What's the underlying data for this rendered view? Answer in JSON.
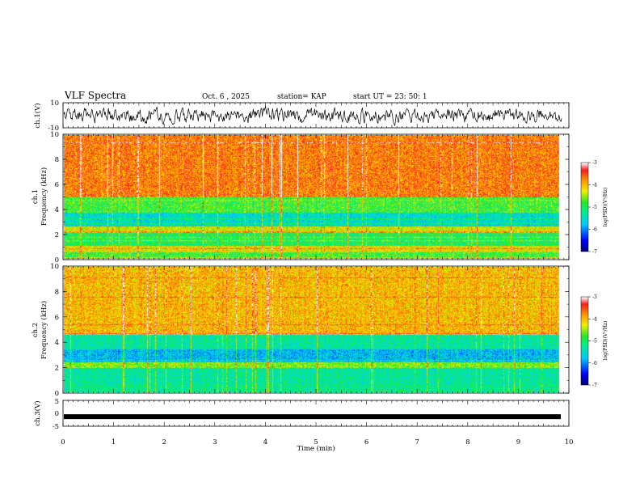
{
  "header": {
    "title": "VLF Spectra",
    "date": "Oct. 6  , 2025",
    "station": "station= KAP",
    "start": "start  UT  =  23: 50: 1"
  },
  "chart_data": [
    {
      "type": "line",
      "title": "ch.1 waveform",
      "ylabel": "ch.1(V)",
      "ylim": [
        -10,
        10
      ],
      "yticks": [
        "10",
        "-10"
      ],
      "xlim": [
        0,
        10
      ]
    },
    {
      "type": "heatmap",
      "title": "ch.1 spectrogram",
      "ylabel_top": "ch.1",
      "ylabel": "Frequency  (kHz)",
      "ylim": [
        0,
        10
      ],
      "yticks": [
        "0",
        "2",
        "4",
        "6",
        "8",
        "10"
      ],
      "xlim": [
        0,
        10
      ],
      "data_end_min": 9.83,
      "colorbar": {
        "label": "log(PSD)(V²/Hz)",
        "range": [
          -7,
          -3
        ],
        "ticks": [
          "-3",
          "-4",
          "-5",
          "-6",
          "-7"
        ]
      },
      "bands": [
        {
          "from_khz": 0.0,
          "to_khz": 0.5,
          "level": -4.8
        },
        {
          "from_khz": 0.5,
          "to_khz": 1.0,
          "level": -4.2
        },
        {
          "from_khz": 1.0,
          "to_khz": 2.1,
          "level": -5.0
        },
        {
          "from_khz": 2.1,
          "to_khz": 2.6,
          "level": -4.3
        },
        {
          "from_khz": 2.6,
          "to_khz": 3.7,
          "level": -5.5
        },
        {
          "from_khz": 3.7,
          "to_khz": 5.0,
          "level": -4.8
        },
        {
          "from_khz": 5.0,
          "to_khz": 10.0,
          "level": -3.7
        }
      ]
    },
    {
      "type": "heatmap",
      "title": "ch.2 spectrogram",
      "ylabel_top": "ch.2",
      "ylabel": "Frequency  (kHz)",
      "ylim": [
        0,
        10
      ],
      "yticks": [
        "0",
        "2",
        "4",
        "6",
        "8",
        "10"
      ],
      "xlim": [
        0,
        10
      ],
      "data_end_min": 9.83,
      "colorbar": {
        "label": "log(PSD)(V²/Hz)",
        "range": [
          -7,
          -3
        ],
        "ticks": [
          "-3",
          "-4",
          "-5",
          "-6",
          "-7"
        ]
      },
      "bands": [
        {
          "from_khz": 0.0,
          "to_khz": 0.6,
          "level": -5.2
        },
        {
          "from_khz": 0.6,
          "to_khz": 1.9,
          "level": -5.3
        },
        {
          "from_khz": 1.9,
          "to_khz": 2.4,
          "level": -4.6
        },
        {
          "from_khz": 2.4,
          "to_khz": 3.4,
          "level": -5.8
        },
        {
          "from_khz": 3.4,
          "to_khz": 4.6,
          "level": -5.3
        },
        {
          "from_khz": 4.6,
          "to_khz": 10.0,
          "level": -4.0
        }
      ]
    },
    {
      "type": "line",
      "title": "ch.3 waveform",
      "ylabel": "ch.3(V)",
      "ylim": [
        -5,
        5
      ],
      "yticks": [
        "5",
        "0",
        "-5"
      ],
      "xlim": [
        0,
        10
      ],
      "xlabel": "Time  (min)",
      "xticks": [
        "0",
        "1",
        "2",
        "3",
        "4",
        "5",
        "6",
        "7",
        "8",
        "9",
        "10"
      ],
      "level_v": -1.3
    }
  ]
}
